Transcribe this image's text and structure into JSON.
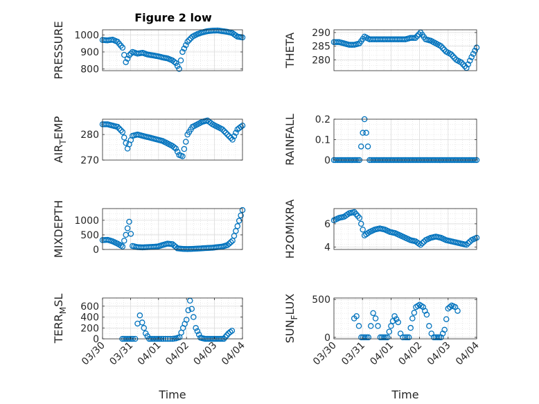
{
  "figure": {
    "title": "Figure 2 low",
    "marker_color": "#0072BD",
    "axes_color": "#262626",
    "grid": true,
    "minor_grid": true
  },
  "chart_data": [
    {
      "type": "scatter",
      "name": "pressure",
      "ylabel": "PRESSURE",
      "ylabel_sub": "",
      "ylim": [
        790,
        1030
      ],
      "yticks": [
        800,
        900,
        1000
      ],
      "xlim": [
        "03/31 06:00",
        "04/03 18:00"
      ],
      "x": [
        "03/31 06:00",
        "03/31 09:00",
        "03/31 12:00",
        "03/31 15:00",
        "03/31 18:00",
        "03/31 20:00",
        "03/31 22:00",
        "04/01 00:00",
        "04/01 03:00",
        "04/01 06:00",
        "04/01 09:00",
        "04/01 12:00",
        "04/01 15:00",
        "04/01 18:00",
        "04/01 21:00",
        "04/02 00:00",
        "04/02 02:00",
        "04/02 04:00",
        "04/02 06:00",
        "04/02 09:00",
        "04/02 12:00",
        "04/02 15:00",
        "04/02 18:00",
        "04/02 21:00",
        "04/03 00:00",
        "04/03 03:00",
        "04/03 06:00",
        "04/03 09:00",
        "04/03 12:00",
        "04/03 15:00",
        "04/03 18:00"
      ],
      "y": [
        970,
        968,
        972,
        960,
        925,
        840,
        880,
        900,
        890,
        895,
        885,
        880,
        875,
        868,
        862,
        850,
        835,
        800,
        900,
        960,
        990,
        1005,
        1015,
        1022,
        1025,
        1026,
        1022,
        1018,
        1010,
        990,
        985
      ]
    },
    {
      "type": "scatter",
      "name": "theta",
      "ylabel": "THETA",
      "ylabel_sub": "",
      "ylim": [
        276,
        291
      ],
      "yticks": [
        280,
        285,
        290
      ],
      "xlim": [
        "03/31 06:00",
        "04/03 18:00"
      ],
      "x": [
        "03/31 06:00",
        "03/31 09:00",
        "03/31 12:00",
        "03/31 15:00",
        "03/31 18:00",
        "03/31 21:00",
        "04/01 00:00",
        "04/01 03:00",
        "04/01 06:00",
        "04/01 09:00",
        "04/01 12:00",
        "04/01 15:00",
        "04/01 18:00",
        "04/01 21:00",
        "04/02 00:00",
        "04/02 03:00",
        "04/02 06:00",
        "04/02 09:00",
        "04/02 12:00",
        "04/02 15:00",
        "04/02 18:00",
        "04/02 21:00",
        "04/03 00:00",
        "04/03 03:00",
        "04/03 06:00",
        "04/03 09:00",
        "04/03 12:00",
        "04/03 15:00",
        "04/03 18:00"
      ],
      "y": [
        286.5,
        286.5,
        286,
        285.5,
        285.5,
        286,
        288.5,
        287.5,
        287.5,
        287.5,
        287.5,
        287.5,
        287.5,
        287.5,
        287.5,
        288,
        288,
        290,
        287.5,
        287,
        286,
        285,
        283,
        282,
        280,
        279,
        277,
        281,
        284.5
      ]
    },
    {
      "type": "scatter",
      "name": "air_temp",
      "ylabel": "AIR",
      "ylabel_sub": "T",
      "ylabel_suffix": "EMP",
      "ylim": [
        270,
        286
      ],
      "yticks": [
        270,
        280
      ],
      "xlim": [
        "03/31 06:00",
        "04/03 18:00"
      ],
      "x": [
        "03/31 06:00",
        "03/31 09:00",
        "03/31 12:00",
        "03/31 15:00",
        "03/31 18:00",
        "03/31 21:00",
        "04/01 00:00",
        "04/01 03:00",
        "04/01 06:00",
        "04/01 09:00",
        "04/01 12:00",
        "04/01 15:00",
        "04/01 18:00",
        "04/01 21:00",
        "04/02 00:00",
        "04/02 02:00",
        "04/02 04:00",
        "04/02 06:00",
        "04/02 09:00",
        "04/02 12:00",
        "04/02 15:00",
        "04/02 18:00",
        "04/02 21:00",
        "04/03 00:00",
        "04/03 03:00",
        "04/03 06:00",
        "04/03 09:00",
        "04/03 12:00",
        "04/03 15:00",
        "04/03 18:00"
      ],
      "y": [
        284,
        284,
        283.5,
        283,
        281,
        274.5,
        279.5,
        280,
        279.5,
        279,
        278.5,
        278,
        277.5,
        276.5,
        275.5,
        274.5,
        272,
        271.5,
        280,
        283,
        284,
        285,
        285.5,
        284,
        283,
        282,
        280,
        278,
        282,
        283.5
      ]
    },
    {
      "type": "scatter",
      "name": "rainfall",
      "ylabel": "RAINFALL",
      "ylabel_sub": "",
      "ylim": [
        0,
        0.2
      ],
      "yticks": [
        0,
        0.1,
        0.2
      ],
      "xlim": [
        "03/31 06:00",
        "04/03 18:00"
      ],
      "x": [
        "03/31 06:00",
        "03/31 09:00",
        "03/31 12:00",
        "03/31 15:00",
        "03/31 18:00",
        "03/31 21:00",
        "04/01 00:00",
        "04/01 03:00",
        "04/01 06:00",
        "04/01 09:00",
        "04/01 12:00",
        "04/01 15:00",
        "04/01 18:00",
        "04/01 21:00",
        "04/02 00:00",
        "04/02 03:00",
        "04/02 06:00",
        "04/02 09:00",
        "04/02 12:00",
        "04/02 15:00",
        "04/02 18:00",
        "04/02 21:00",
        "04/03 00:00",
        "04/03 03:00",
        "04/03 06:00",
        "04/03 09:00",
        "04/03 12:00",
        "04/03 15:00",
        "04/03 18:00"
      ],
      "y": [
        0,
        0,
        0,
        0,
        0,
        0,
        0.2,
        0,
        0,
        0,
        0,
        0,
        0,
        0,
        0,
        0,
        0,
        0,
        0,
        0,
        0,
        0,
        0,
        0,
        0,
        0,
        0,
        0,
        0
      ]
    },
    {
      "type": "scatter",
      "name": "mixdepth",
      "ylabel": "MIXDEPTH",
      "ylabel_sub": "",
      "ylim": [
        0,
        1400
      ],
      "yticks": [
        0,
        500,
        1000
      ],
      "xlim": [
        "03/31 06:00",
        "04/03 18:00"
      ],
      "x": [
        "03/31 06:00",
        "03/31 09:00",
        "03/31 12:00",
        "03/31 15:00",
        "03/31 18:00",
        "03/31 20:00",
        "03/31 22:00",
        "04/01 00:00",
        "04/01 03:00",
        "04/01 06:00",
        "04/01 09:00",
        "04/01 12:00",
        "04/01 15:00",
        "04/01 18:00",
        "04/01 21:00",
        "04/02 00:00",
        "04/02 03:00",
        "04/02 06:00",
        "04/02 09:00",
        "04/02 12:00",
        "04/02 15:00",
        "04/02 18:00",
        "04/02 21:00",
        "04/03 00:00",
        "04/03 03:00",
        "04/03 06:00",
        "04/03 09:00",
        "04/03 12:00",
        "04/03 15:00",
        "04/03 18:00"
      ],
      "y": [
        320,
        330,
        280,
        200,
        100,
        500,
        950,
        120,
        80,
        70,
        80,
        90,
        100,
        150,
        200,
        180,
        40,
        20,
        15,
        20,
        30,
        40,
        50,
        60,
        80,
        100,
        150,
        300,
        800,
        1350
      ]
    },
    {
      "type": "scatter",
      "name": "h2omixra",
      "ylabel": "H2OMIXRA",
      "ylabel_sub": "",
      "ylim": [
        3.8,
        7.3
      ],
      "yticks": [
        4,
        6
      ],
      "xlim": [
        "03/31 06:00",
        "04/03 18:00"
      ],
      "x": [
        "03/31 06:00",
        "03/31 09:00",
        "03/31 12:00",
        "03/31 15:00",
        "03/31 18:00",
        "03/31 21:00",
        "04/01 00:00",
        "04/01 03:00",
        "04/01 06:00",
        "04/01 09:00",
        "04/01 12:00",
        "04/01 15:00",
        "04/01 18:00",
        "04/01 21:00",
        "04/02 00:00",
        "04/02 03:00",
        "04/02 06:00",
        "04/02 09:00",
        "04/02 12:00",
        "04/02 15:00",
        "04/02 18:00",
        "04/02 21:00",
        "04/03 00:00",
        "04/03 03:00",
        "04/03 06:00",
        "04/03 09:00",
        "04/03 12:00",
        "04/03 15:00",
        "04/03 18:00"
      ],
      "y": [
        6.3,
        6.5,
        6.6,
        6.9,
        7.0,
        6.5,
        5.0,
        5.3,
        5.5,
        5.6,
        5.5,
        5.3,
        5.2,
        5.0,
        4.8,
        4.6,
        4.5,
        4.2,
        4.6,
        4.8,
        4.9,
        4.8,
        4.6,
        4.5,
        4.4,
        4.3,
        4.2,
        4.6,
        4.8
      ]
    },
    {
      "type": "scatter",
      "name": "terr_msl",
      "ylabel": "TERR",
      "ylabel_sub": "M",
      "ylabel_suffix": "SL",
      "ylim": [
        0,
        750
      ],
      "yticks": [
        0,
        200,
        400,
        600
      ],
      "xlim": [
        "03/30 00:00",
        "04/04 00:00"
      ],
      "xticks": [
        "03/30",
        "03/31",
        "04/01",
        "04/02",
        "04/03",
        "04/04"
      ],
      "xlabel": "Time",
      "x": [
        "03/30 17:00",
        "03/30 20:00",
        "03/30 23:00",
        "03/31 02:00",
        "03/31 04:00",
        "03/31 06:00",
        "03/31 08:00",
        "03/31 10:00",
        "03/31 13:00",
        "03/31 16:00",
        "03/31 19:00",
        "03/31 22:00",
        "04/01 01:00",
        "04/01 04:00",
        "04/01 06:00",
        "04/01 08:00",
        "04/01 10:00",
        "04/01 12:00",
        "04/01 15:00",
        "04/01 18:00",
        "04/01 21:00",
        "04/02 00:00",
        "04/02 03:00",
        "04/02 06:00",
        "04/02 08:00",
        "04/02 12:00",
        "04/02 16:00",
        "04/02 20:00",
        "04/03 00:00",
        "04/03 04:00",
        "04/03 08:00",
        "04/03 12:00",
        "04/03 15:00"
      ],
      "y": [
        0,
        0,
        0,
        0,
        0,
        280,
        430,
        300,
        100,
        0,
        0,
        0,
        0,
        0,
        0,
        0,
        0,
        0,
        10,
        30,
        200,
        350,
        700,
        400,
        200,
        20,
        0,
        0,
        0,
        0,
        0,
        100,
        150
      ]
    },
    {
      "type": "scatter",
      "name": "sun_flux",
      "ylabel": "SUN",
      "ylabel_sub": "F",
      "ylabel_suffix": "LUX",
      "ylim": [
        -20,
        520
      ],
      "yticks": [
        0,
        500
      ],
      "xlim": [
        "03/30 00:00",
        "04/04 00:00"
      ],
      "xticks": [
        "03/30",
        "03/31",
        "04/01",
        "04/02",
        "04/03",
        "04/04"
      ],
      "xlabel": "Time",
      "x": [
        "03/30 17:00",
        "03/30 19:00",
        "03/30 21:00",
        "03/30 23:00",
        "03/31 02:00",
        "03/31 05:00",
        "03/31 07:00",
        "03/31 09:00",
        "03/31 11:00",
        "03/31 13:00",
        "03/31 15:00",
        "03/31 18:00",
        "03/31 21:00",
        "04/01 00:00",
        "04/01 03:00",
        "04/01 06:00",
        "04/01 08:00",
        "04/01 10:00",
        "04/01 12:00",
        "04/01 15:00",
        "04/01 18:00",
        "04/01 21:00",
        "04/02 00:00",
        "04/02 03:00",
        "04/02 06:00",
        "04/02 08:00",
        "04/02 10:00",
        "04/02 12:00",
        "04/02 15:00",
        "04/02 18:00",
        "04/02 21:00",
        "04/03 00:00",
        "04/03 03:00",
        "04/03 06:00",
        "04/03 08:00"
      ],
      "y": [
        250,
        280,
        150,
        0,
        0,
        0,
        150,
        320,
        250,
        150,
        0,
        0,
        0,
        150,
        280,
        200,
        50,
        0,
        0,
        0,
        250,
        400,
        430,
        400,
        300,
        150,
        50,
        0,
        0,
        0,
        100,
        380,
        420,
        400,
        350
      ]
    }
  ]
}
